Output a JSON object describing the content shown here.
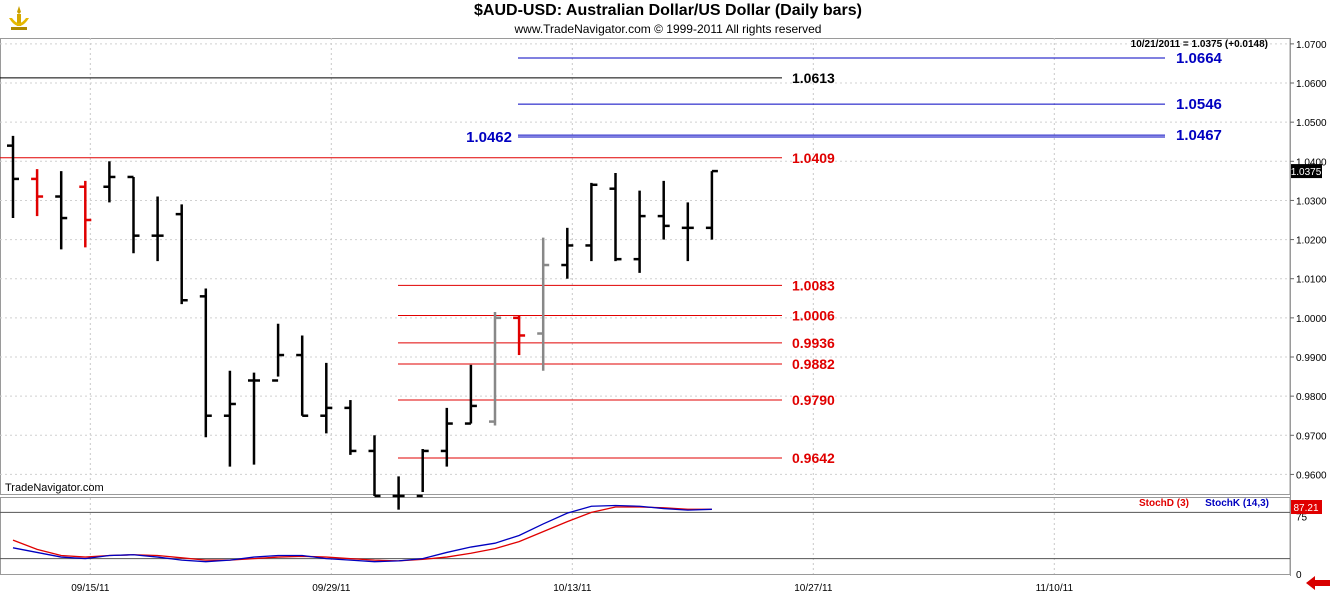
{
  "header": {
    "title": "$AUD-USD:  Australian Dollar/US Dollar  (Daily bars)",
    "copyright": "www.TradeNavigator.com © 1999-2011 All rights reserved",
    "last_readout": "10/21/2011 = 1.0375 (+0.0148)",
    "watermark": "TradeNavigator.com"
  },
  "colors": {
    "up_bar": "#000000",
    "down_bar": "#e00000",
    "gray_bar": "#888888",
    "resistance": "#0000c0",
    "support": "#e00000",
    "stoch_d": "#e00000",
    "stoch_k": "#0000c0"
  },
  "chart_data": [
    {
      "type": "ohlc",
      "title": "$AUD-USD:  Australian Dollar/US Dollar  (Daily bars)",
      "ylim": [
        0.955,
        1.0715
      ],
      "y_ticks": [
        "1.0700",
        "1.0600",
        "1.0500",
        "1.0400",
        "1.0300",
        "1.0200",
        "1.0100",
        "1.0000",
        "0.9900",
        "0.9800",
        "0.9700",
        "0.9600"
      ],
      "y_tick_values": [
        1.07,
        1.06,
        1.05,
        1.04,
        1.03,
        1.02,
        1.01,
        1.0,
        0.99,
        0.98,
        0.97,
        0.96
      ],
      "x_ticks": [
        "09/15/11",
        "09/29/11",
        "10/13/11",
        "10/27/11",
        "11/10/11"
      ],
      "x_tick_index": [
        3,
        13,
        23,
        33,
        43
      ],
      "current_price_label": "1.0375",
      "current_price": 1.0375,
      "grid": true,
      "bars": [
        {
          "i": 0,
          "o": 1.044,
          "h": 1.0465,
          "l": 1.0255,
          "c": 1.0355,
          "col": "up_bar"
        },
        {
          "i": 1,
          "o": 1.0355,
          "h": 1.038,
          "l": 1.026,
          "c": 1.031,
          "col": "down_bar"
        },
        {
          "i": 2,
          "o": 1.031,
          "h": 1.0375,
          "l": 1.0175,
          "c": 1.0255,
          "col": "up_bar"
        },
        {
          "i": 3,
          "o": 1.0335,
          "h": 1.035,
          "l": 1.018,
          "c": 1.025,
          "col": "down_bar"
        },
        {
          "i": 4,
          "o": 1.0335,
          "h": 1.04,
          "l": 1.0295,
          "c": 1.036,
          "col": "up_bar"
        },
        {
          "i": 5,
          "o": 1.036,
          "h": 1.036,
          "l": 1.0165,
          "c": 1.021,
          "col": "up_bar"
        },
        {
          "i": 6,
          "o": 1.021,
          "h": 1.031,
          "l": 1.0145,
          "c": 1.021,
          "col": "up_bar"
        },
        {
          "i": 7,
          "o": 1.0265,
          "h": 1.029,
          "l": 1.0035,
          "c": 1.0045,
          "col": "up_bar"
        },
        {
          "i": 8,
          "o": 1.0055,
          "h": 1.0075,
          "l": 0.9695,
          "c": 0.975,
          "col": "up_bar"
        },
        {
          "i": 9,
          "o": 0.975,
          "h": 0.9865,
          "l": 0.962,
          "c": 0.978,
          "col": "up_bar"
        },
        {
          "i": 10,
          "o": 0.984,
          "h": 0.986,
          "l": 0.9625,
          "c": 0.984,
          "col": "up_bar"
        },
        {
          "i": 11,
          "o": 0.984,
          "h": 0.9985,
          "l": 0.985,
          "c": 0.9905,
          "col": "up_bar"
        },
        {
          "i": 12,
          "o": 0.9905,
          "h": 0.9955,
          "l": 0.975,
          "c": 0.975,
          "col": "up_bar"
        },
        {
          "i": 13,
          "o": 0.975,
          "h": 0.9885,
          "l": 0.9705,
          "c": 0.977,
          "col": "up_bar"
        },
        {
          "i": 14,
          "o": 0.977,
          "h": 0.979,
          "l": 0.965,
          "c": 0.966,
          "col": "up_bar"
        },
        {
          "i": 15,
          "o": 0.966,
          "h": 0.97,
          "l": 0.9545,
          "c": 0.9545,
          "col": "up_bar"
        },
        {
          "i": 16,
          "o": 0.9545,
          "h": 0.9595,
          "l": 0.951,
          "c": 0.9545,
          "col": "up_bar"
        },
        {
          "i": 17,
          "o": 0.9545,
          "h": 0.9665,
          "l": 0.9555,
          "c": 0.966,
          "col": "up_bar"
        },
        {
          "i": 18,
          "o": 0.966,
          "h": 0.977,
          "l": 0.962,
          "c": 0.973,
          "col": "up_bar"
        },
        {
          "i": 19,
          "o": 0.973,
          "h": 0.988,
          "l": 0.973,
          "c": 0.9775,
          "col": "up_bar"
        },
        {
          "i": 20,
          "o": 0.9735,
          "h": 1.0015,
          "l": 0.9725,
          "c": 1.0,
          "col": "gray_bar"
        },
        {
          "i": 21,
          "o": 1.0,
          "h": 1.0005,
          "l": 0.9905,
          "c": 0.9955,
          "col": "down_bar"
        },
        {
          "i": 22,
          "o": 0.996,
          "h": 1.0205,
          "l": 0.9865,
          "c": 1.0135,
          "col": "gray_bar"
        },
        {
          "i": 23,
          "o": 1.0135,
          "h": 1.023,
          "l": 1.01,
          "c": 1.0185,
          "col": "up_bar"
        },
        {
          "i": 24,
          "o": 1.0185,
          "h": 1.0345,
          "l": 1.0145,
          "c": 1.034,
          "col": "up_bar"
        },
        {
          "i": 25,
          "o": 1.033,
          "h": 1.037,
          "l": 1.0145,
          "c": 1.015,
          "col": "up_bar"
        },
        {
          "i": 26,
          "o": 1.015,
          "h": 1.0325,
          "l": 1.0115,
          "c": 1.026,
          "col": "up_bar"
        },
        {
          "i": 27,
          "o": 1.026,
          "h": 1.035,
          "l": 1.02,
          "c": 1.0235,
          "col": "up_bar"
        },
        {
          "i": 28,
          "o": 1.023,
          "h": 1.0295,
          "l": 1.0145,
          "c": 1.023,
          "col": "up_bar"
        },
        {
          "i": 29,
          "o": 1.023,
          "h": 1.0375,
          "l": 1.02,
          "c": 1.0375,
          "col": "up_bar"
        }
      ],
      "levels": [
        {
          "value": 1.0664,
          "label": "1.0664",
          "color": "resistance",
          "side": "right"
        },
        {
          "value": 1.0546,
          "label": "1.0546",
          "color": "resistance",
          "side": "right"
        },
        {
          "value": 1.0467,
          "label": "1.0467",
          "color": "resistance",
          "side": "right"
        },
        {
          "value": 1.0462,
          "label": "1.0462",
          "color": "resistance",
          "side": "left"
        },
        {
          "value": 1.0613,
          "label": "1.0613",
          "color": "up_bar",
          "side": "right"
        },
        {
          "value": 1.0409,
          "label": "1.0409",
          "color": "support",
          "side": "right"
        },
        {
          "value": 1.0083,
          "label": "1.0083",
          "color": "support",
          "side": "right"
        },
        {
          "value": 1.0006,
          "label": "1.0006",
          "color": "support",
          "side": "right"
        },
        {
          "value": 0.9936,
          "label": "0.9936",
          "color": "support",
          "side": "right"
        },
        {
          "value": 0.9882,
          "label": "0.9882",
          "color": "support",
          "side": "right"
        },
        {
          "value": 0.979,
          "label": "0.9790",
          "color": "support",
          "side": "right"
        },
        {
          "value": 0.9642,
          "label": "0.9642",
          "color": "support",
          "side": "right"
        }
      ]
    },
    {
      "type": "line",
      "ylim": [
        0,
        100
      ],
      "y_ticks": [
        "75",
        "0"
      ],
      "y_tick_values": [
        75,
        0
      ],
      "ref_lines": [
        80,
        20
      ],
      "current_value_label": "87.21",
      "series": [
        {
          "name": "StochD (3)",
          "color": "stoch_d",
          "values": [
            44,
            32,
            24,
            22,
            24,
            25,
            24,
            21,
            18,
            18,
            20,
            22,
            23,
            22,
            20,
            18,
            17,
            19,
            22,
            27,
            33,
            42,
            55,
            68,
            80,
            87,
            87,
            86,
            84,
            84
          ]
        },
        {
          "name": "StochK (14,3)",
          "color": "stoch_k",
          "values": [
            34,
            28,
            22,
            20,
            24,
            25,
            22,
            18,
            16,
            18,
            22,
            24,
            24,
            20,
            18,
            16,
            17,
            20,
            28,
            35,
            40,
            50,
            65,
            79,
            88,
            89,
            88,
            85,
            83,
            84
          ]
        }
      ]
    }
  ]
}
